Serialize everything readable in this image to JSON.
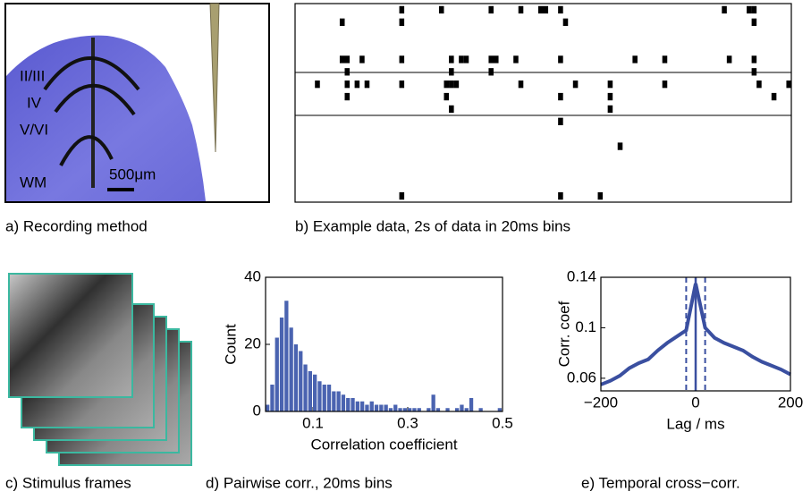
{
  "panel_a": {
    "labels": [
      "II/III",
      "IV",
      "V/VI",
      "WM"
    ],
    "scale": "500μm",
    "caption": "a) Recording method"
  },
  "raster": {
    "bins": 100,
    "rows": [
      [
        21,
        29,
        39,
        45,
        49,
        50,
        53,
        86,
        91,
        92
      ],
      [
        9,
        21,
        54,
        92
      ],
      [],
      [],
      [
        9,
        10,
        13,
        21,
        31,
        33,
        34,
        39,
        40,
        44,
        53,
        68,
        74,
        87,
        92
      ],
      [
        10,
        31,
        39,
        92
      ],
      [
        4,
        10,
        12,
        14,
        21,
        30,
        31,
        32,
        45,
        56,
        63,
        74,
        93,
        99
      ],
      [
        10,
        30,
        53,
        63,
        96
      ],
      [
        31,
        63
      ],
      [
        53
      ],
      [],
      [
        65
      ],
      [],
      [],
      [],
      [
        21,
        53,
        61
      ]
    ],
    "caption": "b) Example data, 2s of data in 20ms bins"
  },
  "panel_c": {
    "caption": "c) Stimulus frames"
  },
  "chart_data": [
    {
      "type": "histogram",
      "caption": "d) Pairwise corr., 20ms bins",
      "xlabel": "Correlation coefficient",
      "ylabel": "Count",
      "color": "#4a63b0",
      "bins": [
        0,
        0.01,
        0.02,
        0.03,
        0.04,
        0.05,
        0.06,
        0.07,
        0.08,
        0.09,
        0.1,
        0.11,
        0.12,
        0.13,
        0.14,
        0.15,
        0.16,
        0.17,
        0.18,
        0.19,
        0.2,
        0.21,
        0.22,
        0.23,
        0.24,
        0.25,
        0.26,
        0.27,
        0.28,
        0.29,
        0.3,
        0.31,
        0.32,
        0.33,
        0.34,
        0.35,
        0.36,
        0.37,
        0.38,
        0.39,
        0.4,
        0.41,
        0.42,
        0.43,
        0.44,
        0.45,
        0.46,
        0.47,
        0.48,
        0.49,
        0.5
      ],
      "values": [
        2,
        8,
        22,
        28,
        33,
        25,
        20,
        18,
        14,
        12,
        11,
        9,
        8,
        8,
        6,
        6,
        5,
        4,
        4,
        3,
        3,
        2,
        3,
        2,
        2,
        2,
        1,
        2,
        1,
        1,
        1,
        1,
        1,
        0,
        1,
        5,
        1,
        0,
        1,
        0,
        1,
        2,
        1,
        4,
        0,
        1,
        0,
        0,
        0,
        1
      ],
      "xlim": [
        0,
        0.5
      ],
      "ylim": [
        0,
        40
      ],
      "xticks": [
        0.1,
        0.3,
        0.5
      ],
      "yticks": [
        0,
        20,
        40
      ]
    },
    {
      "type": "line",
      "caption": "e) Temporal cross−corr.",
      "xlabel": "Lag / ms",
      "ylabel": "Corr. coef",
      "x": [
        -200,
        -180,
        -160,
        -140,
        -120,
        -100,
        -80,
        -60,
        -40,
        -20,
        0,
        20,
        40,
        60,
        80,
        100,
        120,
        140,
        160,
        180,
        200
      ],
      "series": [
        {
          "color": "#3a4fa0",
          "values": [
            0.055,
            0.058,
            0.062,
            0.068,
            0.072,
            0.075,
            0.082,
            0.088,
            0.093,
            0.098,
            0.135,
            0.1,
            0.092,
            0.088,
            0.085,
            0.082,
            0.077,
            0.073,
            0.07,
            0.067,
            0.063
          ]
        }
      ],
      "solid_lines": [
        0
      ],
      "dashed_lines": [
        -20,
        20
      ],
      "xlim": [
        -200,
        200
      ],
      "ylim": [
        0.05,
        0.14
      ],
      "xticks": [
        {
          "value": -200,
          "label": "−200"
        },
        0,
        200
      ],
      "yticks": [
        0.06,
        0.1,
        0.14
      ]
    }
  ]
}
